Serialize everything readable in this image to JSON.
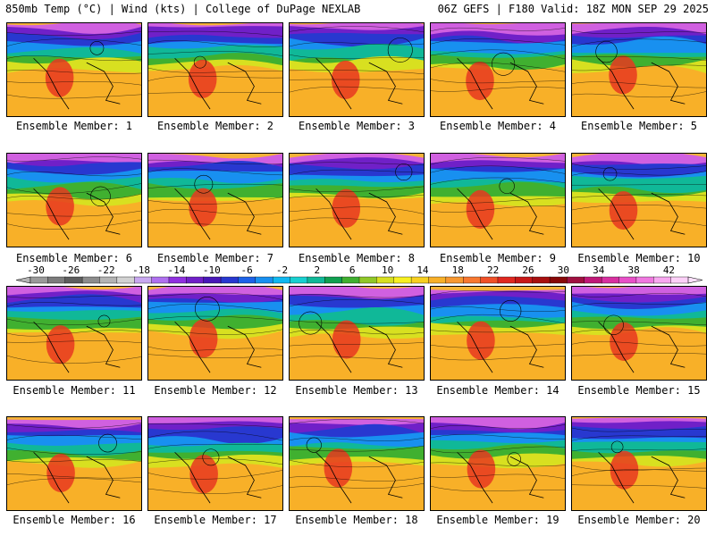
{
  "header": {
    "title": "850mb Temp (°C) | Wind (kts) | College of DuPage NEXLAB",
    "run_info": "06Z GEFS | F180 Valid: 18Z MON SEP 29 2025"
  },
  "panels": [
    {
      "label": "Ensemble Member: 1"
    },
    {
      "label": "Ensemble Member: 2"
    },
    {
      "label": "Ensemble Member: 3"
    },
    {
      "label": "Ensemble Member: 4"
    },
    {
      "label": "Ensemble Member: 5"
    },
    {
      "label": "Ensemble Member: 6"
    },
    {
      "label": "Ensemble Member: 7"
    },
    {
      "label": "Ensemble Member: 8"
    },
    {
      "label": "Ensemble Member: 9"
    },
    {
      "label": "Ensemble Member: 10"
    },
    {
      "label": "Ensemble Member: 11"
    },
    {
      "label": "Ensemble Member: 12"
    },
    {
      "label": "Ensemble Member: 13"
    },
    {
      "label": "Ensemble Member: 14"
    },
    {
      "label": "Ensemble Member: 15"
    },
    {
      "label": "Ensemble Member: 16"
    },
    {
      "label": "Ensemble Member: 17"
    },
    {
      "label": "Ensemble Member: 18"
    },
    {
      "label": "Ensemble Member: 19"
    },
    {
      "label": "Ensemble Member: 20"
    }
  ],
  "colorbar": {
    "ticks": [
      "-30",
      "-26",
      "-22",
      "-18",
      "-14",
      "-10",
      "-6",
      "-2",
      "2",
      "6",
      "10",
      "14",
      "18",
      "22",
      "26",
      "30",
      "34",
      "38",
      "42"
    ],
    "colors": [
      "#9a9a9a",
      "#7c7c7c",
      "#5e5e5e",
      "#8c8c8c",
      "#b4b4b4",
      "#d2d2d2",
      "#c8a8f0",
      "#b070f0",
      "#9030e0",
      "#7020c8",
      "#4818b8",
      "#2838d0",
      "#1c62e8",
      "#1890f0",
      "#10b8f0",
      "#18d0d0",
      "#10b898",
      "#10a050",
      "#40b030",
      "#90c828",
      "#d8e020",
      "#f8f020",
      "#f8d020",
      "#f8b028",
      "#f89830",
      "#f87830",
      "#f05028",
      "#e02820",
      "#c81818",
      "#a81010",
      "#880808",
      "#a01040",
      "#c01878",
      "#d830a0",
      "#e850c8",
      "#f078e0",
      "#f8a8f0",
      "#fcd0f8"
    ]
  }
}
